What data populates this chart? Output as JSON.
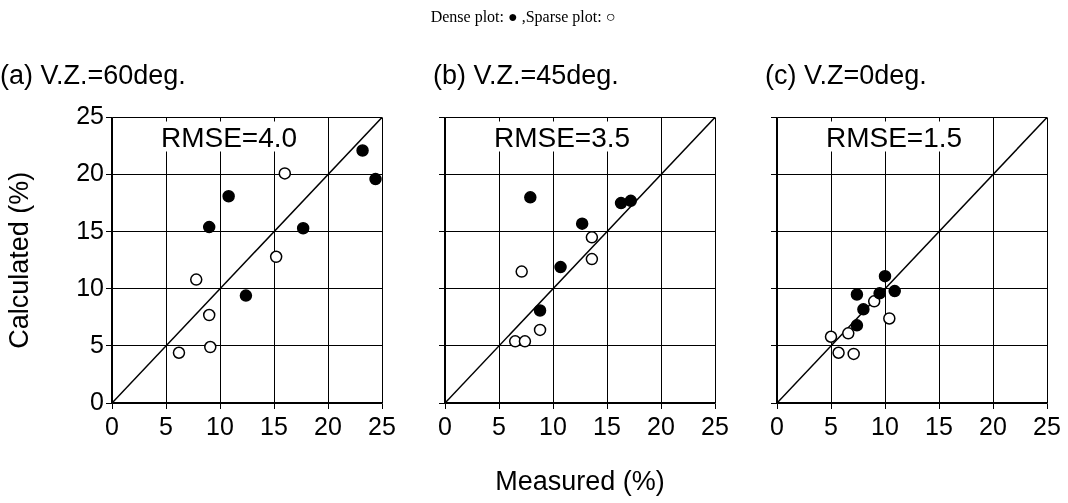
{
  "chart_data": [
    {
      "type": "scatter",
      "title": "(a) V.Z.=60deg.",
      "ylabel": "Calculated (%)",
      "annotations": [
        "RMSE=4.0"
      ],
      "xlim": [
        0,
        25
      ],
      "ylim": [
        0,
        25
      ],
      "xticks": [
        0,
        5,
        10,
        15,
        20,
        25
      ],
      "yticks": [
        0,
        5,
        10,
        15,
        20,
        25
      ],
      "grid": true,
      "marker": "circle",
      "series": [
        {
          "color": "#000000",
          "x": [
            9.0,
            10.8,
            17.7,
            12.4,
            23.2,
            24.4
          ],
          "values": [
            15.4,
            18.1,
            15.3,
            9.4,
            22.1,
            19.6
          ]
        },
        {
          "color": "#ffffff",
          "x": [
            16.0,
            15.2,
            7.8,
            9.0,
            9.1,
            6.2
          ],
          "values": [
            20.1,
            12.8,
            10.8,
            7.7,
            4.9,
            4.4
          ]
        },
        {
          "type": "line",
          "marker": "none",
          "color": "#000000",
          "x": [
            0,
            25
          ],
          "values": [
            0,
            25
          ]
        }
      ]
    },
    {
      "type": "scatter",
      "subtitle": "Dense plot: ● ,Sparse plot: ○",
      "title": "(b) V.Z.=45deg.",
      "xlabel": "Measured (%)",
      "annotations": [
        "RMSE=3.5"
      ],
      "xlim": [
        0,
        25
      ],
      "ylim": [
        0,
        25
      ],
      "xticks": [
        0,
        5,
        10,
        15,
        20,
        25
      ],
      "yticks": [
        0,
        5,
        10,
        15,
        20,
        25
      ],
      "grid": true,
      "tick_labels": "x",
      "marker": "circle",
      "series": [
        {
          "color": "#000000",
          "x": [
            7.9,
            12.7,
            10.7,
            8.8,
            16.3,
            17.2
          ],
          "values": [
            18.0,
            15.7,
            11.9,
            8.1,
            17.5,
            17.7
          ]
        },
        {
          "color": "#ffffff",
          "x": [
            13.6,
            13.6,
            7.1,
            8.8,
            6.5,
            7.4
          ],
          "values": [
            14.5,
            12.6,
            11.5,
            6.4,
            5.4,
            5.4
          ]
        },
        {
          "type": "line",
          "marker": "none",
          "color": "#000000",
          "x": [
            0,
            25
          ],
          "values": [
            0,
            25
          ]
        }
      ]
    },
    {
      "type": "scatter",
      "title": "(c) V.Z=0deg.",
      "annotations": [
        "RMSE=1.5"
      ],
      "xlim": [
        0,
        25
      ],
      "ylim": [
        0,
        25
      ],
      "xticks": [
        0,
        5,
        10,
        15,
        20,
        25
      ],
      "yticks": [
        0,
        5,
        10,
        15,
        20,
        25
      ],
      "grid": true,
      "tick_labels": "x",
      "marker": "circle",
      "series": [
        {
          "color": "#000000",
          "x": [
            10.0,
            10.9,
            7.4,
            9.5,
            8.0,
            7.4
          ],
          "values": [
            11.1,
            9.8,
            9.5,
            9.6,
            8.2,
            6.8
          ]
        },
        {
          "color": "#ffffff",
          "x": [
            9.0,
            10.4,
            6.6,
            5.0,
            5.7,
            7.1
          ],
          "values": [
            8.9,
            7.4,
            6.1,
            5.8,
            4.4,
            4.3
          ]
        },
        {
          "type": "line",
          "marker": "none",
          "color": "#000000",
          "x": [
            0,
            25
          ],
          "values": [
            0,
            25
          ]
        }
      ]
    }
  ]
}
